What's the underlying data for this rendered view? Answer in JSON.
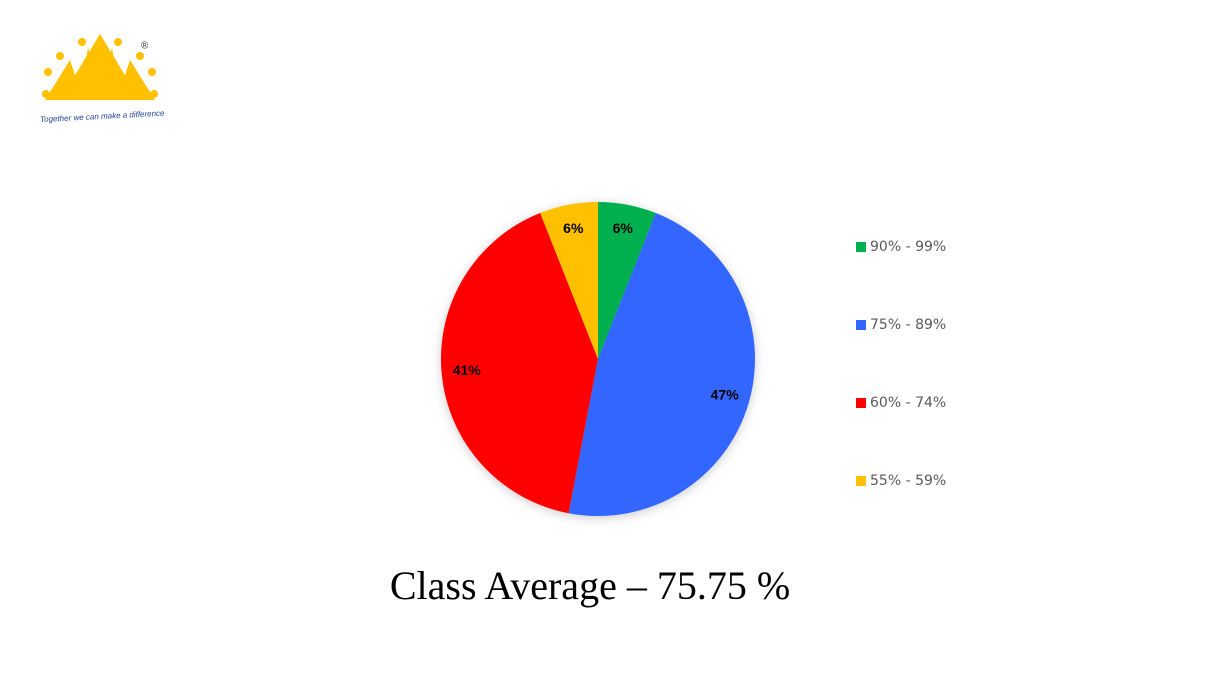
{
  "logo": {
    "mark": "®",
    "tagline": "Together we can make a difference"
  },
  "chart_data": {
    "type": "pie",
    "categories": [
      "90% - 99%",
      "75% - 89%",
      "60% - 74%",
      "55% - 59%"
    ],
    "values": [
      6,
      47,
      41,
      6
    ],
    "value_labels": [
      "6%",
      "47%",
      "41%",
      "6%"
    ],
    "colors": [
      "#00b050",
      "#3366ff",
      "#ff0000",
      "#ffc000"
    ],
    "legend": "right",
    "annotation": "Class Average – 75.75 %"
  }
}
